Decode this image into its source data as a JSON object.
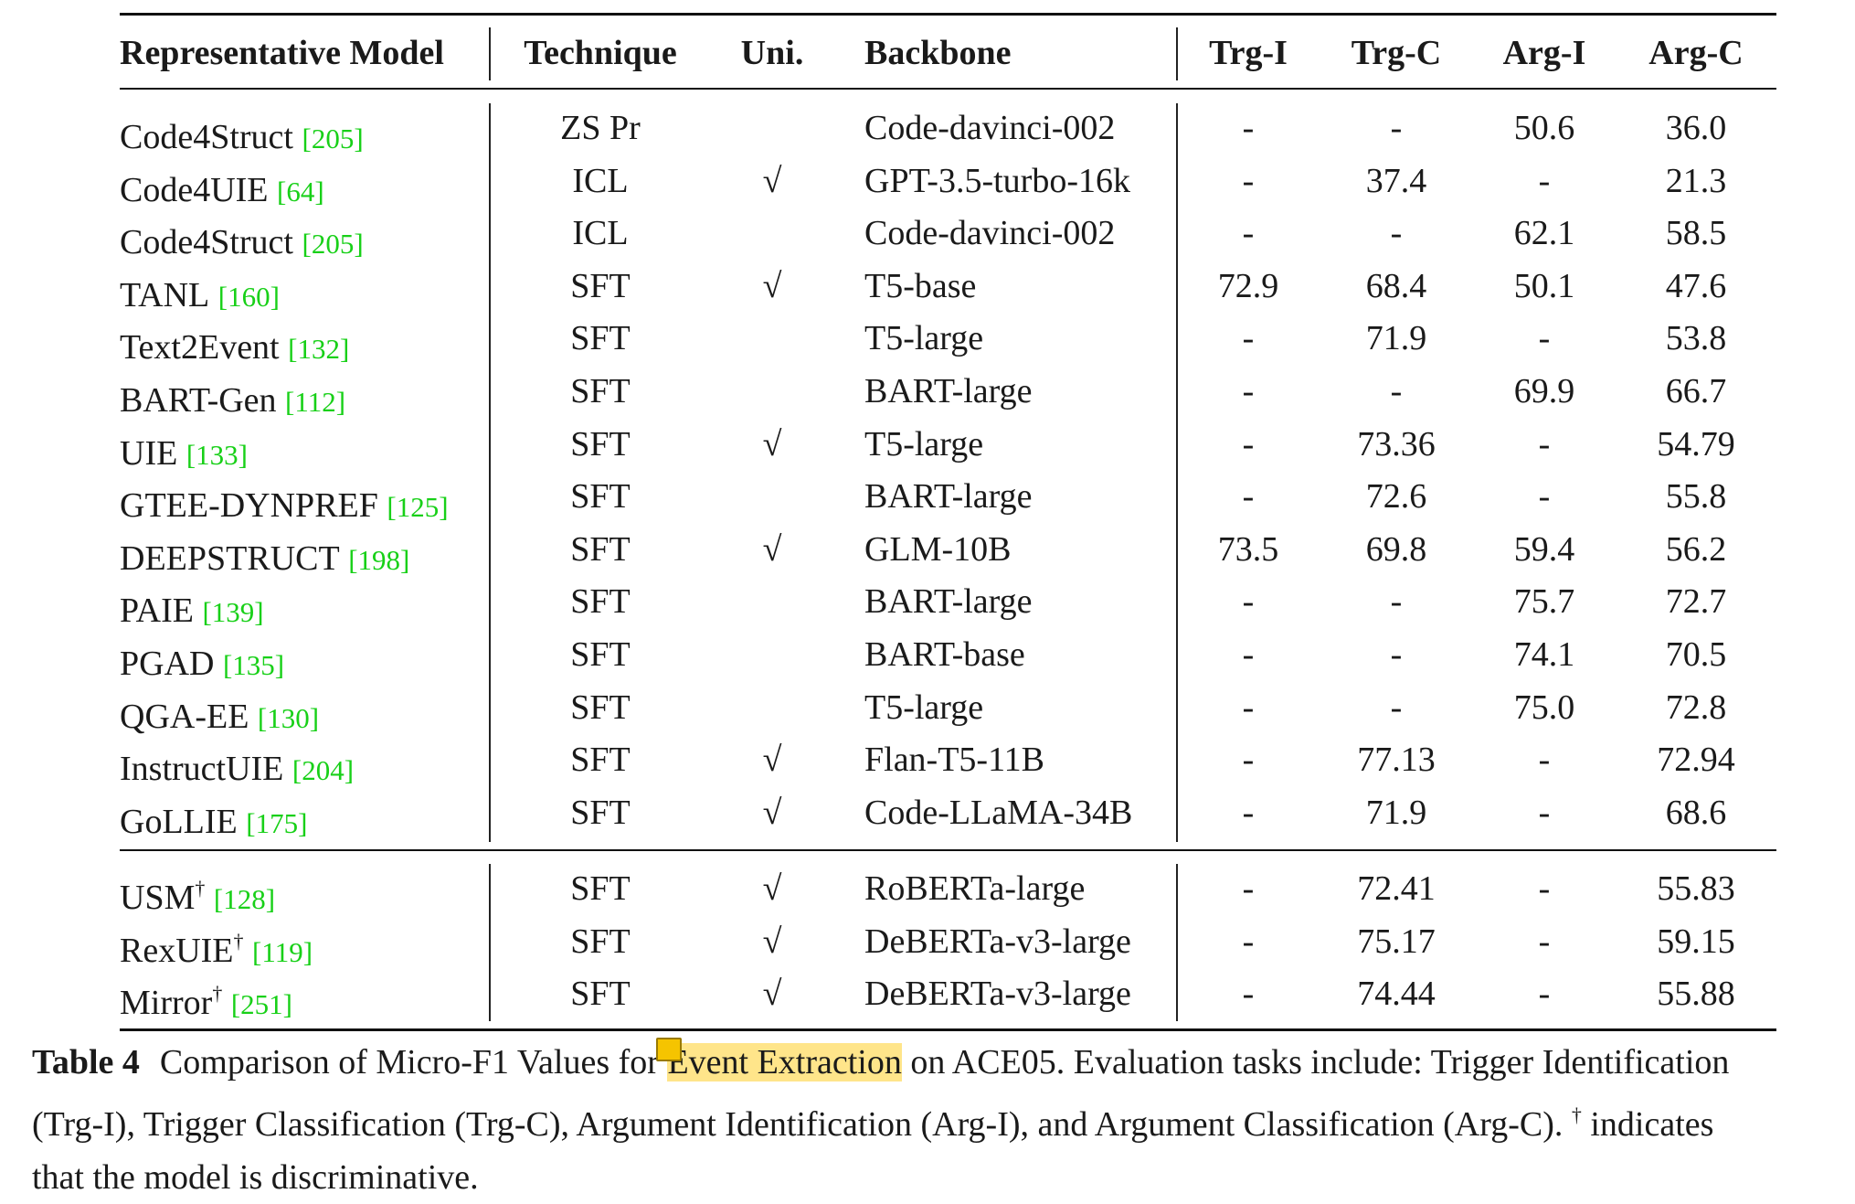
{
  "table": {
    "headers": {
      "model": "Representative Model",
      "technique": "Technique",
      "uni": "Uni.",
      "backbone": "Backbone",
      "trg_i": "Trg-I",
      "trg_c": "Trg-C",
      "arg_i": "Arg-I",
      "arg_c": "Arg-C"
    },
    "section1": [
      {
        "model": "Code4Struct",
        "cite": "205",
        "dagger": "",
        "technique": "ZS Pr",
        "uni": "",
        "backbone": "Code-davinci-002",
        "trg_i": "-",
        "trg_c": "-",
        "arg_i": "50.6",
        "arg_c": "36.0"
      },
      {
        "model": "Code4UIE",
        "cite": "64",
        "dagger": "",
        "technique": "ICL",
        "uni": "√",
        "backbone": "GPT-3.5-turbo-16k",
        "trg_i": "-",
        "trg_c": "37.4",
        "arg_i": "-",
        "arg_c": "21.3"
      },
      {
        "model": "Code4Struct",
        "cite": "205",
        "dagger": "",
        "technique": "ICL",
        "uni": "",
        "backbone": "Code-davinci-002",
        "trg_i": "-",
        "trg_c": "-",
        "arg_i": "62.1",
        "arg_c": "58.5"
      },
      {
        "model": "TANL",
        "cite": "160",
        "dagger": "",
        "technique": "SFT",
        "uni": "√",
        "backbone": "T5-base",
        "trg_i": "72.9",
        "trg_c": "68.4",
        "arg_i": "50.1",
        "arg_c": "47.6"
      },
      {
        "model": "Text2Event",
        "cite": "132",
        "dagger": "",
        "technique": "SFT",
        "uni": "",
        "backbone": "T5-large",
        "trg_i": "-",
        "trg_c": "71.9",
        "arg_i": "-",
        "arg_c": "53.8"
      },
      {
        "model": "BART-Gen",
        "cite": "112",
        "dagger": "",
        "technique": "SFT",
        "uni": "",
        "backbone": "BART-large",
        "trg_i": "-",
        "trg_c": "-",
        "arg_i": "69.9",
        "arg_c": "66.7"
      },
      {
        "model": "UIE",
        "cite": "133",
        "dagger": "",
        "technique": "SFT",
        "uni": "√",
        "backbone": "T5-large",
        "trg_i": "-",
        "trg_c": "73.36",
        "arg_i": "-",
        "arg_c": "54.79"
      },
      {
        "model": "GTEE-DYNPREF",
        "cite": "125",
        "dagger": "",
        "technique": "SFT",
        "uni": "",
        "backbone": "BART-large",
        "trg_i": "-",
        "trg_c": "72.6",
        "arg_i": "-",
        "arg_c": "55.8"
      },
      {
        "model": "DEEPSTRUCT",
        "cite": "198",
        "dagger": "",
        "technique": "SFT",
        "uni": "√",
        "backbone": "GLM-10B",
        "trg_i": "73.5",
        "trg_c": "69.8",
        "arg_i": "59.4",
        "arg_c": "56.2"
      },
      {
        "model": "PAIE",
        "cite": "139",
        "dagger": "",
        "technique": "SFT",
        "uni": "",
        "backbone": "BART-large",
        "trg_i": "-",
        "trg_c": "-",
        "arg_i": "75.7",
        "arg_c": "72.7"
      },
      {
        "model": "PGAD",
        "cite": "135",
        "dagger": "",
        "technique": "SFT",
        "uni": "",
        "backbone": "BART-base",
        "trg_i": "-",
        "trg_c": "-",
        "arg_i": "74.1",
        "arg_c": "70.5"
      },
      {
        "model": "QGA-EE",
        "cite": "130",
        "dagger": "",
        "technique": "SFT",
        "uni": "",
        "backbone": "T5-large",
        "trg_i": "-",
        "trg_c": "-",
        "arg_i": "75.0",
        "arg_c": "72.8"
      },
      {
        "model": "InstructUIE",
        "cite": "204",
        "dagger": "",
        "technique": "SFT",
        "uni": "√",
        "backbone": "Flan-T5-11B",
        "trg_i": "-",
        "trg_c": "77.13",
        "arg_i": "-",
        "arg_c": "72.94"
      },
      {
        "model": "GoLLIE",
        "cite": "175",
        "dagger": "",
        "technique": "SFT",
        "uni": "√",
        "backbone": "Code-LLaMA-34B",
        "trg_i": "-",
        "trg_c": "71.9",
        "arg_i": "-",
        "arg_c": "68.6"
      }
    ],
    "section2": [
      {
        "model": "USM",
        "cite": "128",
        "dagger": "†",
        "technique": "SFT",
        "uni": "√",
        "backbone": "RoBERTa-large",
        "trg_i": "-",
        "trg_c": "72.41",
        "arg_i": "-",
        "arg_c": "55.83"
      },
      {
        "model": "RexUIE",
        "cite": "119",
        "dagger": "†",
        "technique": "SFT",
        "uni": "√",
        "backbone": "DeBERTa-v3-large",
        "trg_i": "-",
        "trg_c": "75.17",
        "arg_i": "-",
        "arg_c": "59.15"
      },
      {
        "model": "Mirror",
        "cite": "251",
        "dagger": "†",
        "technique": "SFT",
        "uni": "√",
        "backbone": "DeBERTa-v3-large",
        "trg_i": "-",
        "trg_c": "74.44",
        "arg_i": "-",
        "arg_c": "55.88"
      }
    ]
  },
  "caption": {
    "label": "Table 4",
    "line1_pre": "Comparison of Micro-F1 Values for ",
    "line1_highlight": "Event Extraction",
    "line1_post": " on ACE05. Evaluation tasks include: Trigger Identification",
    "line2_pre": "(Trg-I), Trigger Classification (Trg-C), Argument Identification (Arg-I), and Argument Classification (Arg-C). ",
    "line2_dagger": "†",
    "line2_post": " indicates",
    "line3": "that the model is discriminative."
  },
  "colors": {
    "citation": "#18d018",
    "highlight": "#ffe58a",
    "note_icon": "#f5c400"
  }
}
